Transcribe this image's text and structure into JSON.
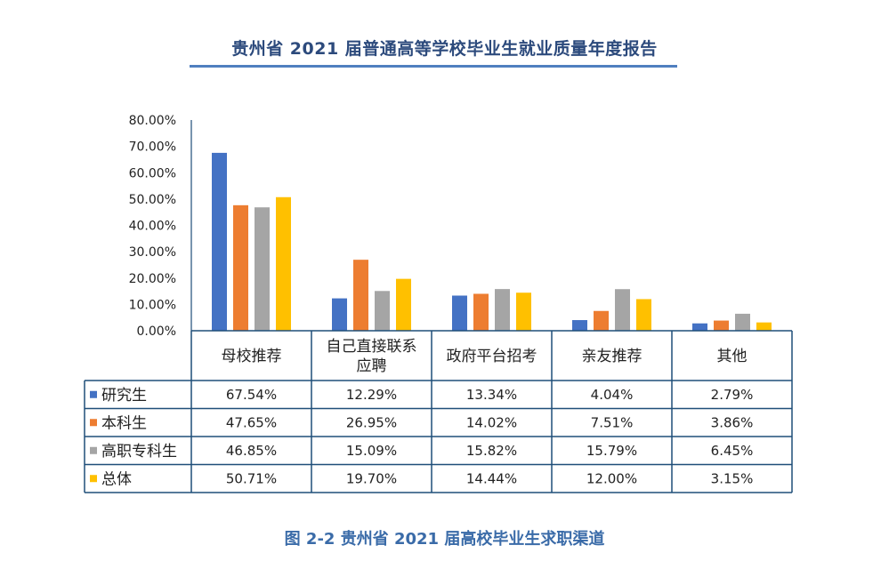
{
  "report_title": "贵州省 2021 届普通高等学校毕业生就业质量年度报告",
  "figure_caption": "图 2-2 贵州省 2021 届高校毕业生求职渠道",
  "colors": {
    "研究生": "#4472c4",
    "本科生": "#ed7d31",
    "高职专科生": "#a5a5a5",
    "总体": "#ffc000",
    "table_border": "#1f4e79"
  },
  "chart_data": {
    "type": "bar",
    "title": "",
    "xlabel": "",
    "ylabel": "",
    "ylim": [
      0,
      80
    ],
    "y_ticks": [
      "0.00%",
      "10.00%",
      "20.00%",
      "30.00%",
      "40.00%",
      "50.00%",
      "60.00%",
      "70.00%",
      "80.00%"
    ],
    "categories": [
      [
        "母校推荐"
      ],
      [
        "自己直接联系",
        "应聘"
      ],
      [
        "政府平台招考"
      ],
      [
        "亲友推荐"
      ],
      [
        "其他"
      ]
    ],
    "series": [
      {
        "name": "研究生",
        "values": [
          67.54,
          12.29,
          13.34,
          4.04,
          2.79
        ],
        "labels": [
          "67.54%",
          "12.29%",
          "13.34%",
          "4.04%",
          "2.79%"
        ]
      },
      {
        "name": "本科生",
        "values": [
          47.65,
          26.95,
          14.02,
          7.51,
          3.86
        ],
        "labels": [
          "47.65%",
          "26.95%",
          "14.02%",
          "7.51%",
          "3.86%"
        ]
      },
      {
        "name": "高职专科生",
        "values": [
          46.85,
          15.09,
          15.82,
          15.79,
          6.45
        ],
        "labels": [
          "46.85%",
          "15.09%",
          "15.82%",
          "15.79%",
          "6.45%"
        ]
      },
      {
        "name": "总体",
        "values": [
          50.71,
          19.7,
          14.44,
          12.0,
          3.15
        ],
        "labels": [
          "50.71%",
          "19.70%",
          "14.44%",
          "12.00%",
          "3.15%"
        ]
      }
    ],
    "legend": "data-table"
  }
}
